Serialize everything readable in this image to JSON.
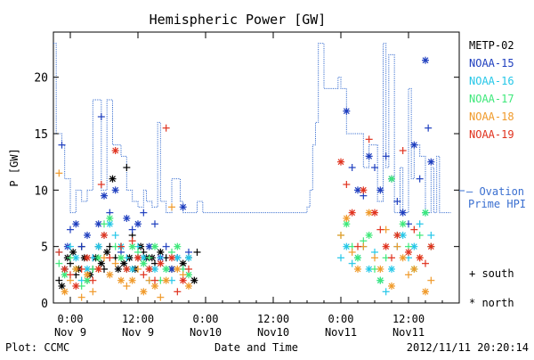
{
  "chart_data": {
    "type": "scatter",
    "title": "Hemispheric Power [GW]",
    "ylabel": "P [GW]",
    "xlabel": "Date and Time",
    "ylim": [
      0,
      24
    ],
    "yticks": [
      0,
      5,
      10,
      15,
      20
    ],
    "xlim_hours_label": "Nov 8 21:00 – Nov 11 21:00",
    "xticks": [
      {
        "top": "0:00",
        "bottom": "Nov 9",
        "hour": 24
      },
      {
        "top": "12:00",
        "bottom": "Nov 9",
        "hour": 36
      },
      {
        "top": "0:00",
        "bottom": "Nov10",
        "hour": 48
      },
      {
        "top": "12:00",
        "bottom": "Nov10",
        "hour": 60
      },
      {
        "top": "0:00",
        "bottom": "Nov11",
        "hour": 72
      },
      {
        "top": "12:00",
        "bottom": "Nov11",
        "hour": 84
      }
    ],
    "legend": {
      "placement": "right",
      "entries": [
        {
          "name": "METP-02",
          "color": "#000000"
        },
        {
          "name": "NOAA-15",
          "color": "#1f3fbf"
        },
        {
          "name": "NOAA-16",
          "color": "#25c7e8"
        },
        {
          "name": "NOAA-17",
          "color": "#3ee87a"
        },
        {
          "name": "NOAA-18",
          "color": "#f09a2a"
        },
        {
          "name": "NOAA-19",
          "color": "#e0321e"
        }
      ],
      "ovation_label_1": "— Ovation",
      "ovation_label_2": "Prime HPI",
      "ovation_color": "#3a6fd0",
      "marker_south": "+ south",
      "marker_north": "* north"
    },
    "footer_left": "Plot: CCMC",
    "footer_right": "2012/11/11 20:20:14",
    "series": [
      {
        "name": "— Ovation Prime HPI",
        "kind": "step",
        "points": [
          [
            21,
            23
          ],
          [
            21.5,
            15
          ],
          [
            22.5,
            14
          ],
          [
            23,
            11
          ],
          [
            24,
            8
          ],
          [
            25,
            10
          ],
          [
            26,
            9
          ],
          [
            27,
            10
          ],
          [
            28,
            18
          ],
          [
            29.5,
            10
          ],
          [
            30.5,
            18
          ],
          [
            31.5,
            14
          ],
          [
            33,
            13
          ],
          [
            34,
            10
          ],
          [
            35,
            9
          ],
          [
            36,
            8.5
          ],
          [
            37,
            10
          ],
          [
            37.5,
            9
          ],
          [
            38.5,
            8.5
          ],
          [
            39.5,
            16
          ],
          [
            40,
            9
          ],
          [
            41,
            8
          ],
          [
            42,
            11
          ],
          [
            43.5,
            9
          ],
          [
            44,
            8
          ],
          [
            45,
            8
          ],
          [
            46.5,
            9
          ],
          [
            47.5,
            8
          ],
          [
            49,
            8
          ],
          [
            64,
            8
          ],
          [
            66,
            8.5
          ],
          [
            66.5,
            10
          ],
          [
            67,
            14
          ],
          [
            67.5,
            16
          ],
          [
            68,
            23
          ],
          [
            69,
            19
          ],
          [
            70,
            19
          ],
          [
            71.5,
            20
          ],
          [
            72,
            19
          ],
          [
            73,
            15
          ],
          [
            75,
            15
          ],
          [
            76,
            12
          ],
          [
            77,
            14
          ],
          [
            78.5,
            9
          ],
          [
            79.5,
            23
          ],
          [
            80,
            12
          ],
          [
            80.5,
            22
          ],
          [
            81.5,
            8
          ],
          [
            82.5,
            12
          ],
          [
            83,
            8
          ],
          [
            84,
            19
          ],
          [
            84.5,
            11
          ],
          [
            85,
            14
          ],
          [
            86,
            13
          ],
          [
            87,
            8
          ],
          [
            88,
            12
          ],
          [
            88.5,
            8
          ],
          [
            89,
            13
          ],
          [
            89.5,
            8
          ],
          [
            90,
            8
          ],
          [
            91.5,
            8
          ]
        ]
      },
      {
        "name": "METP-02",
        "points": [
          [
            22,
            2
          ],
          [
            22.5,
            1.5
          ],
          [
            23,
            3
          ],
          [
            23.5,
            4
          ],
          [
            24,
            3.5
          ],
          [
            24.5,
            4.5
          ],
          [
            25,
            2.5
          ],
          [
            25.5,
            3
          ],
          [
            26,
            5
          ],
          [
            26.5,
            4
          ],
          [
            27,
            2
          ],
          [
            27.5,
            2.5
          ],
          [
            28,
            3
          ],
          [
            28.5,
            4
          ],
          [
            29,
            5
          ],
          [
            29.5,
            3.5
          ],
          [
            30,
            3
          ],
          [
            30.5,
            4.5
          ],
          [
            31,
            5
          ],
          [
            31.5,
            11
          ],
          [
            32,
            4
          ],
          [
            32.5,
            3
          ],
          [
            33,
            5
          ],
          [
            33.5,
            3.5
          ],
          [
            34,
            12
          ],
          [
            34.5,
            4
          ],
          [
            35,
            6
          ],
          [
            35.5,
            3
          ],
          [
            36,
            4
          ],
          [
            36.5,
            5
          ],
          [
            37,
            4.5
          ],
          [
            37.5,
            4
          ],
          [
            38,
            3
          ],
          [
            38.5,
            4
          ],
          [
            39,
            3.5
          ],
          [
            40,
            4.5
          ],
          [
            41,
            4
          ],
          [
            42,
            3
          ],
          [
            43,
            4
          ],
          [
            44,
            3.5
          ],
          [
            45,
            4
          ],
          [
            46,
            2
          ],
          [
            46.5,
            4.5
          ]
        ]
      },
      {
        "name": "NOAA-15",
        "points": [
          [
            22.5,
            14
          ],
          [
            23.5,
            5
          ],
          [
            24,
            6.5
          ],
          [
            25,
            7
          ],
          [
            26,
            5
          ],
          [
            27,
            6
          ],
          [
            28,
            4
          ],
          [
            29,
            7
          ],
          [
            29.5,
            16.5
          ],
          [
            30,
            9.5
          ],
          [
            31,
            8
          ],
          [
            32,
            10
          ],
          [
            33,
            4.5
          ],
          [
            34,
            7.5
          ],
          [
            35,
            6.5
          ],
          [
            36,
            7
          ],
          [
            37,
            8
          ],
          [
            38,
            5
          ],
          [
            39,
            7
          ],
          [
            40,
            4
          ],
          [
            41,
            5
          ],
          [
            42,
            3
          ],
          [
            43,
            4
          ],
          [
            44,
            8.5
          ],
          [
            45,
            4.5
          ],
          [
            73,
            17
          ],
          [
            74,
            12
          ],
          [
            75,
            10
          ],
          [
            76,
            9.5
          ],
          [
            77,
            13
          ],
          [
            78,
            12
          ],
          [
            79,
            10
          ],
          [
            80,
            13
          ],
          [
            81,
            11
          ],
          [
            82,
            9
          ],
          [
            83,
            8
          ],
          [
            84,
            7
          ],
          [
            85,
            14
          ],
          [
            86,
            11
          ],
          [
            87,
            21.5
          ],
          [
            87.5,
            15.5
          ],
          [
            88,
            12.5
          ]
        ]
      },
      {
        "name": "NOAA-16",
        "points": [
          [
            22,
            4.5
          ],
          [
            23,
            3
          ],
          [
            24,
            5
          ],
          [
            25,
            4
          ],
          [
            26,
            2
          ],
          [
            27,
            3
          ],
          [
            28,
            4
          ],
          [
            29,
            5
          ],
          [
            30,
            6
          ],
          [
            31,
            7
          ],
          [
            32,
            6
          ],
          [
            33,
            5
          ],
          [
            34,
            4
          ],
          [
            35,
            3
          ],
          [
            36,
            5
          ],
          [
            37,
            4
          ],
          [
            38,
            2
          ],
          [
            39,
            3
          ],
          [
            40,
            4
          ],
          [
            41,
            3
          ],
          [
            42,
            2
          ],
          [
            43,
            4
          ],
          [
            44,
            3
          ],
          [
            45,
            4
          ],
          [
            72,
            4
          ],
          [
            73,
            5
          ],
          [
            74,
            3.5
          ],
          [
            75,
            4
          ],
          [
            76,
            5
          ],
          [
            77,
            3
          ],
          [
            78,
            4.5
          ],
          [
            79,
            2
          ],
          [
            80,
            1
          ],
          [
            81,
            3
          ],
          [
            82,
            5
          ],
          [
            83,
            6
          ],
          [
            84,
            4
          ],
          [
            85,
            5
          ],
          [
            86,
            7
          ],
          [
            87,
            8
          ],
          [
            88,
            6
          ]
        ]
      },
      {
        "name": "NOAA-17",
        "points": [
          [
            22,
            3.5
          ],
          [
            23,
            2.5
          ],
          [
            24,
            4
          ],
          [
            25,
            3
          ],
          [
            26,
            1.5
          ],
          [
            27,
            2
          ],
          [
            28,
            3
          ],
          [
            29,
            4
          ],
          [
            30,
            7
          ],
          [
            31,
            7.5
          ],
          [
            32,
            5
          ],
          [
            33,
            4
          ],
          [
            34,
            3
          ],
          [
            35,
            5
          ],
          [
            36,
            4.5
          ],
          [
            37,
            3.5
          ],
          [
            38,
            4
          ],
          [
            39,
            5
          ],
          [
            40,
            2
          ],
          [
            41,
            3
          ],
          [
            42,
            4.5
          ],
          [
            43,
            5
          ],
          [
            44,
            3
          ],
          [
            45,
            2.5
          ],
          [
            72,
            6
          ],
          [
            73,
            7
          ],
          [
            74,
            5
          ],
          [
            75,
            4
          ],
          [
            76,
            5.5
          ],
          [
            77,
            6
          ],
          [
            78,
            3
          ],
          [
            79,
            2
          ],
          [
            80,
            4
          ],
          [
            81,
            11
          ],
          [
            82,
            6
          ],
          [
            83,
            7
          ],
          [
            84,
            5
          ],
          [
            85,
            3
          ],
          [
            86,
            6
          ],
          [
            87,
            8
          ],
          [
            88,
            5
          ]
        ]
      },
      {
        "name": "NOAA-18",
        "points": [
          [
            22,
            11.5
          ],
          [
            23,
            1
          ],
          [
            24,
            2
          ],
          [
            25,
            3
          ],
          [
            26,
            0.5
          ],
          [
            27,
            2.5
          ],
          [
            28,
            1
          ],
          [
            29,
            3
          ],
          [
            30,
            4
          ],
          [
            31,
            2.5
          ],
          [
            32,
            3.5
          ],
          [
            33,
            2
          ],
          [
            34,
            1.5
          ],
          [
            35,
            2
          ],
          [
            36,
            3
          ],
          [
            37,
            1
          ],
          [
            38,
            2
          ],
          [
            39,
            1.5
          ],
          [
            40,
            0.5
          ],
          [
            41,
            2
          ],
          [
            42,
            8.5
          ],
          [
            43,
            3
          ],
          [
            44,
            2.5
          ],
          [
            45,
            1.5
          ],
          [
            72,
            6
          ],
          [
            73,
            7.5
          ],
          [
            74,
            4.5
          ],
          [
            75,
            3
          ],
          [
            76,
            5
          ],
          [
            77,
            8
          ],
          [
            78,
            4
          ],
          [
            79,
            3
          ],
          [
            80,
            6.5
          ],
          [
            81,
            1.5
          ],
          [
            82,
            5
          ],
          [
            83,
            4
          ],
          [
            84,
            2.5
          ],
          [
            85,
            3
          ],
          [
            86,
            4
          ],
          [
            87,
            1
          ],
          [
            88,
            2
          ]
        ]
      },
      {
        "name": "NOAA-19",
        "points": [
          [
            22,
            4.5
          ],
          [
            23,
            3
          ],
          [
            24,
            2.5
          ],
          [
            25,
            1.5
          ],
          [
            26,
            3
          ],
          [
            27,
            4
          ],
          [
            28,
            2
          ],
          [
            29,
            3
          ],
          [
            29.5,
            10.5
          ],
          [
            30,
            6
          ],
          [
            31,
            4
          ],
          [
            32,
            13.5
          ],
          [
            33,
            5
          ],
          [
            34,
            3
          ],
          [
            35,
            5.5
          ],
          [
            36,
            4
          ],
          [
            37,
            2.5
          ],
          [
            38,
            3
          ],
          [
            39,
            2
          ],
          [
            40,
            3.5
          ],
          [
            41,
            15.5
          ],
          [
            42,
            4
          ],
          [
            43,
            1
          ],
          [
            44,
            2
          ],
          [
            45,
            3
          ],
          [
            72,
            12.5
          ],
          [
            73,
            10.5
          ],
          [
            74,
            8
          ],
          [
            75,
            5
          ],
          [
            76,
            10
          ],
          [
            77,
            14.5
          ],
          [
            78,
            8
          ],
          [
            79,
            6.5
          ],
          [
            80,
            5
          ],
          [
            81,
            4
          ],
          [
            82,
            6
          ],
          [
            83,
            13.5
          ],
          [
            84,
            4.5
          ],
          [
            85,
            6.5
          ],
          [
            86,
            4
          ],
          [
            87,
            3.5
          ],
          [
            88,
            5
          ]
        ]
      }
    ]
  }
}
